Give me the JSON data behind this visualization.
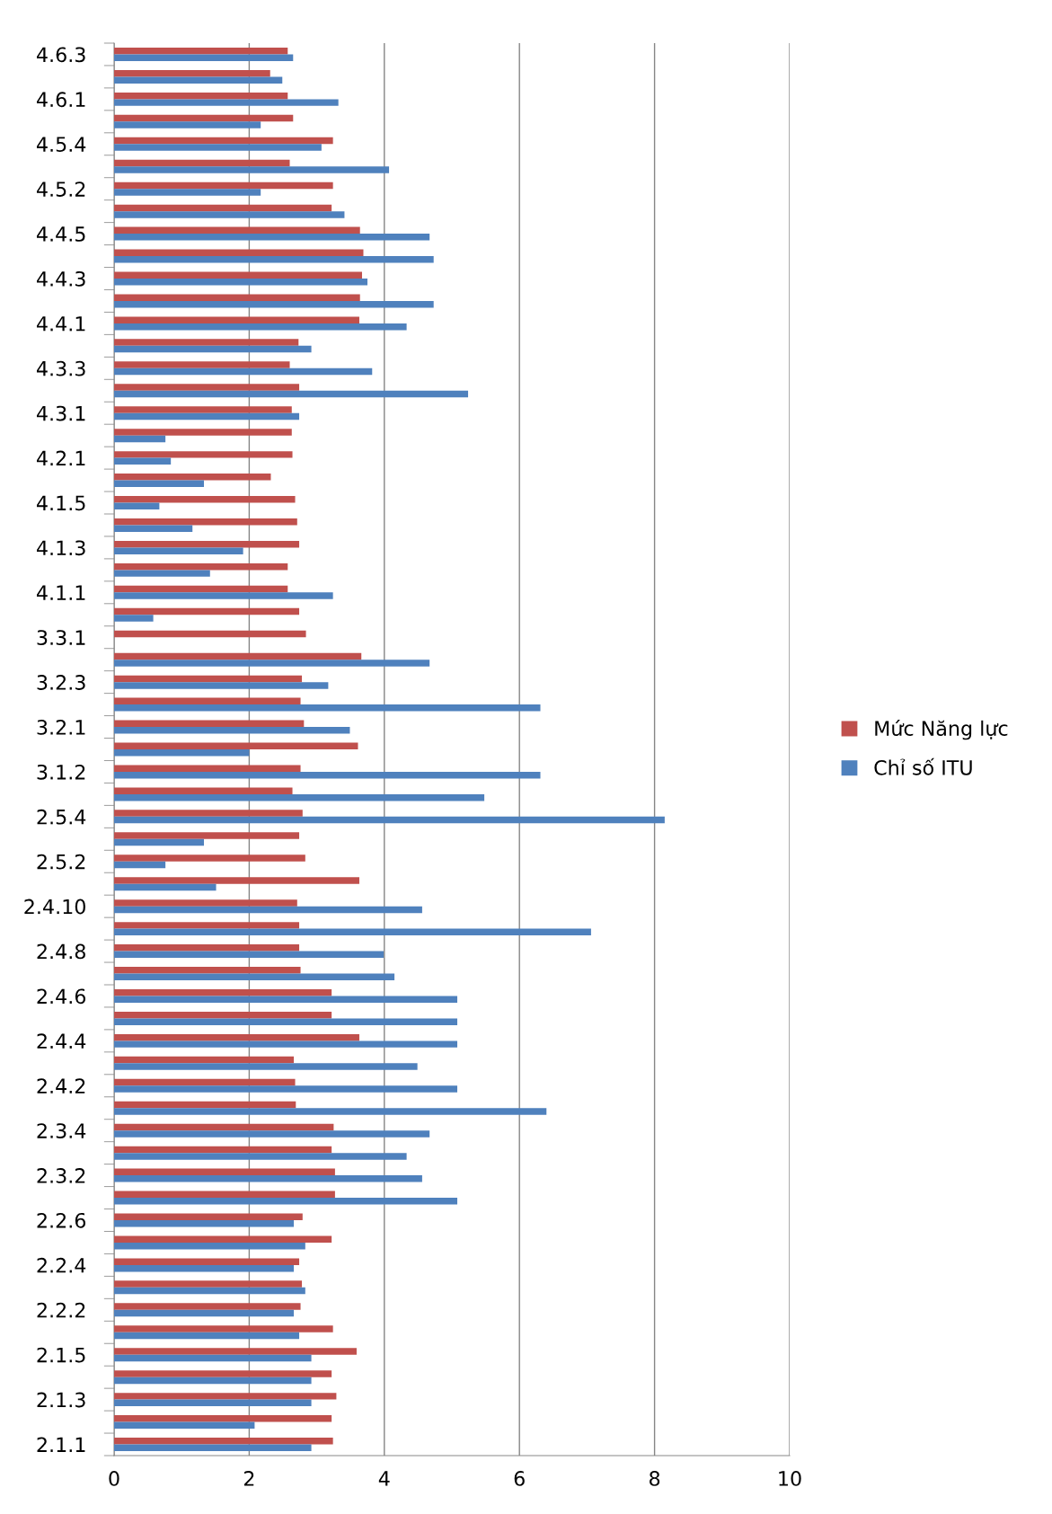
{
  "chart_data": {
    "type": "bar",
    "orientation": "horizontal",
    "categories": [
      "4.6.3",
      null,
      "4.6.1",
      null,
      "4.5.4",
      null,
      "4.5.2",
      null,
      "4.4.5",
      null,
      "4.4.3",
      null,
      "4.4.1",
      null,
      "4.3.3",
      null,
      "4.3.1",
      null,
      "4.2.1",
      null,
      "4.1.5",
      null,
      "4.1.3",
      null,
      "4.1.1",
      null,
      "3.3.1",
      null,
      "3.2.3",
      null,
      "3.2.1",
      null,
      "3.1.2",
      null,
      "2.5.4",
      null,
      "2.5.2",
      null,
      "2.4.10",
      null,
      "2.4.8",
      null,
      "2.4.6",
      null,
      "2.4.4",
      null,
      "2.4.2",
      null,
      "2.3.4",
      null,
      "2.3.2",
      null,
      "2.2.6",
      null,
      "2.2.4",
      null,
      "2.2.2",
      null,
      "2.1.5",
      null,
      "2.1.3",
      null,
      "2.1.1"
    ],
    "series": [
      {
        "name": "Mức Năng lực",
        "color": "#c0504d",
        "values": [
          2.57,
          2.31,
          2.57,
          2.65,
          3.24,
          2.6,
          3.24,
          3.22,
          3.64,
          3.69,
          3.67,
          3.64,
          3.63,
          2.73,
          2.6,
          2.74,
          2.63,
          2.63,
          2.64,
          2.32,
          2.68,
          2.71,
          2.74,
          2.57,
          2.57,
          2.74,
          2.84,
          3.66,
          2.78,
          2.76,
          2.81,
          3.61,
          2.76,
          2.64,
          2.79,
          2.74,
          2.83,
          3.63,
          2.71,
          2.74,
          2.74,
          2.76,
          3.22,
          3.22,
          3.63,
          2.66,
          2.68,
          2.69,
          3.25,
          3.22,
          3.27,
          3.27,
          2.79,
          3.22,
          2.74,
          2.78,
          2.76,
          3.24,
          3.59,
          3.22,
          3.29,
          3.22,
          3.24
        ]
      },
      {
        "name": "Chỉ số ITU",
        "color": "#4f81bd",
        "values": [
          2.65,
          2.49,
          3.32,
          2.17,
          3.07,
          4.07,
          2.17,
          3.41,
          4.67,
          4.73,
          3.75,
          4.73,
          4.33,
          2.92,
          3.82,
          5.24,
          2.74,
          0.76,
          0.84,
          1.33,
          0.67,
          1.16,
          1.91,
          1.42,
          3.24,
          0.58,
          0,
          4.67,
          3.17,
          6.31,
          3.49,
          2.0,
          6.31,
          5.48,
          8.15,
          1.33,
          0.76,
          1.51,
          4.56,
          7.06,
          3.99,
          4.15,
          5.08,
          5.08,
          5.08,
          4.49,
          5.08,
          6.4,
          4.67,
          4.33,
          4.56,
          5.08,
          2.66,
          2.83,
          2.66,
          2.83,
          2.66,
          2.74,
          2.92,
          2.92,
          2.92,
          2.08,
          2.92
        ]
      }
    ],
    "xlim": [
      0,
      10
    ],
    "xticks": [
      0,
      2,
      4,
      6,
      8,
      10
    ],
    "grid": "x",
    "legend": "right"
  }
}
